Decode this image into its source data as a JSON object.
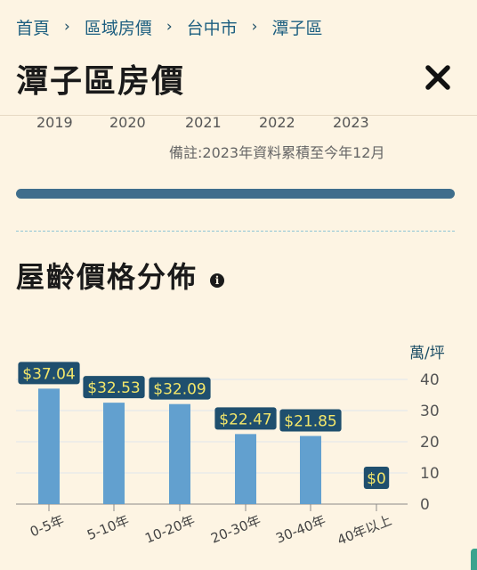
{
  "breadcrumb": {
    "items": [
      "首頁",
      "區域房價",
      "台中市",
      "潭子區"
    ],
    "separator": "›"
  },
  "page": {
    "title": "潭子區房價"
  },
  "years": [
    "2019",
    "2020",
    "2021",
    "2022",
    "2023"
  ],
  "note": "備註:2023年資料累積至今年12月",
  "section": {
    "title": "屋齡價格分佈"
  },
  "colors": {
    "bar": "#62a0cf",
    "label_bg": "#1f4f6e",
    "label_text": "#f3e66a",
    "axis_text": "#1d4e66",
    "grid": "#dfe6ee"
  },
  "chart_data": {
    "type": "bar",
    "categories": [
      "0-5年",
      "5-10年",
      "10-20年",
      "20-30年",
      "30-40年",
      "40年以上"
    ],
    "values": [
      37.04,
      32.53,
      32.09,
      22.47,
      21.85,
      0
    ],
    "data_labels": [
      "$37.04",
      "$32.53",
      "$32.09",
      "$22.47",
      "$21.85",
      "$0"
    ],
    "ylabel": "萬/坪",
    "yticks": [
      0,
      10,
      20,
      30,
      40
    ],
    "ylim": [
      0,
      40
    ],
    "y_axis_position": "right",
    "grid": true
  }
}
